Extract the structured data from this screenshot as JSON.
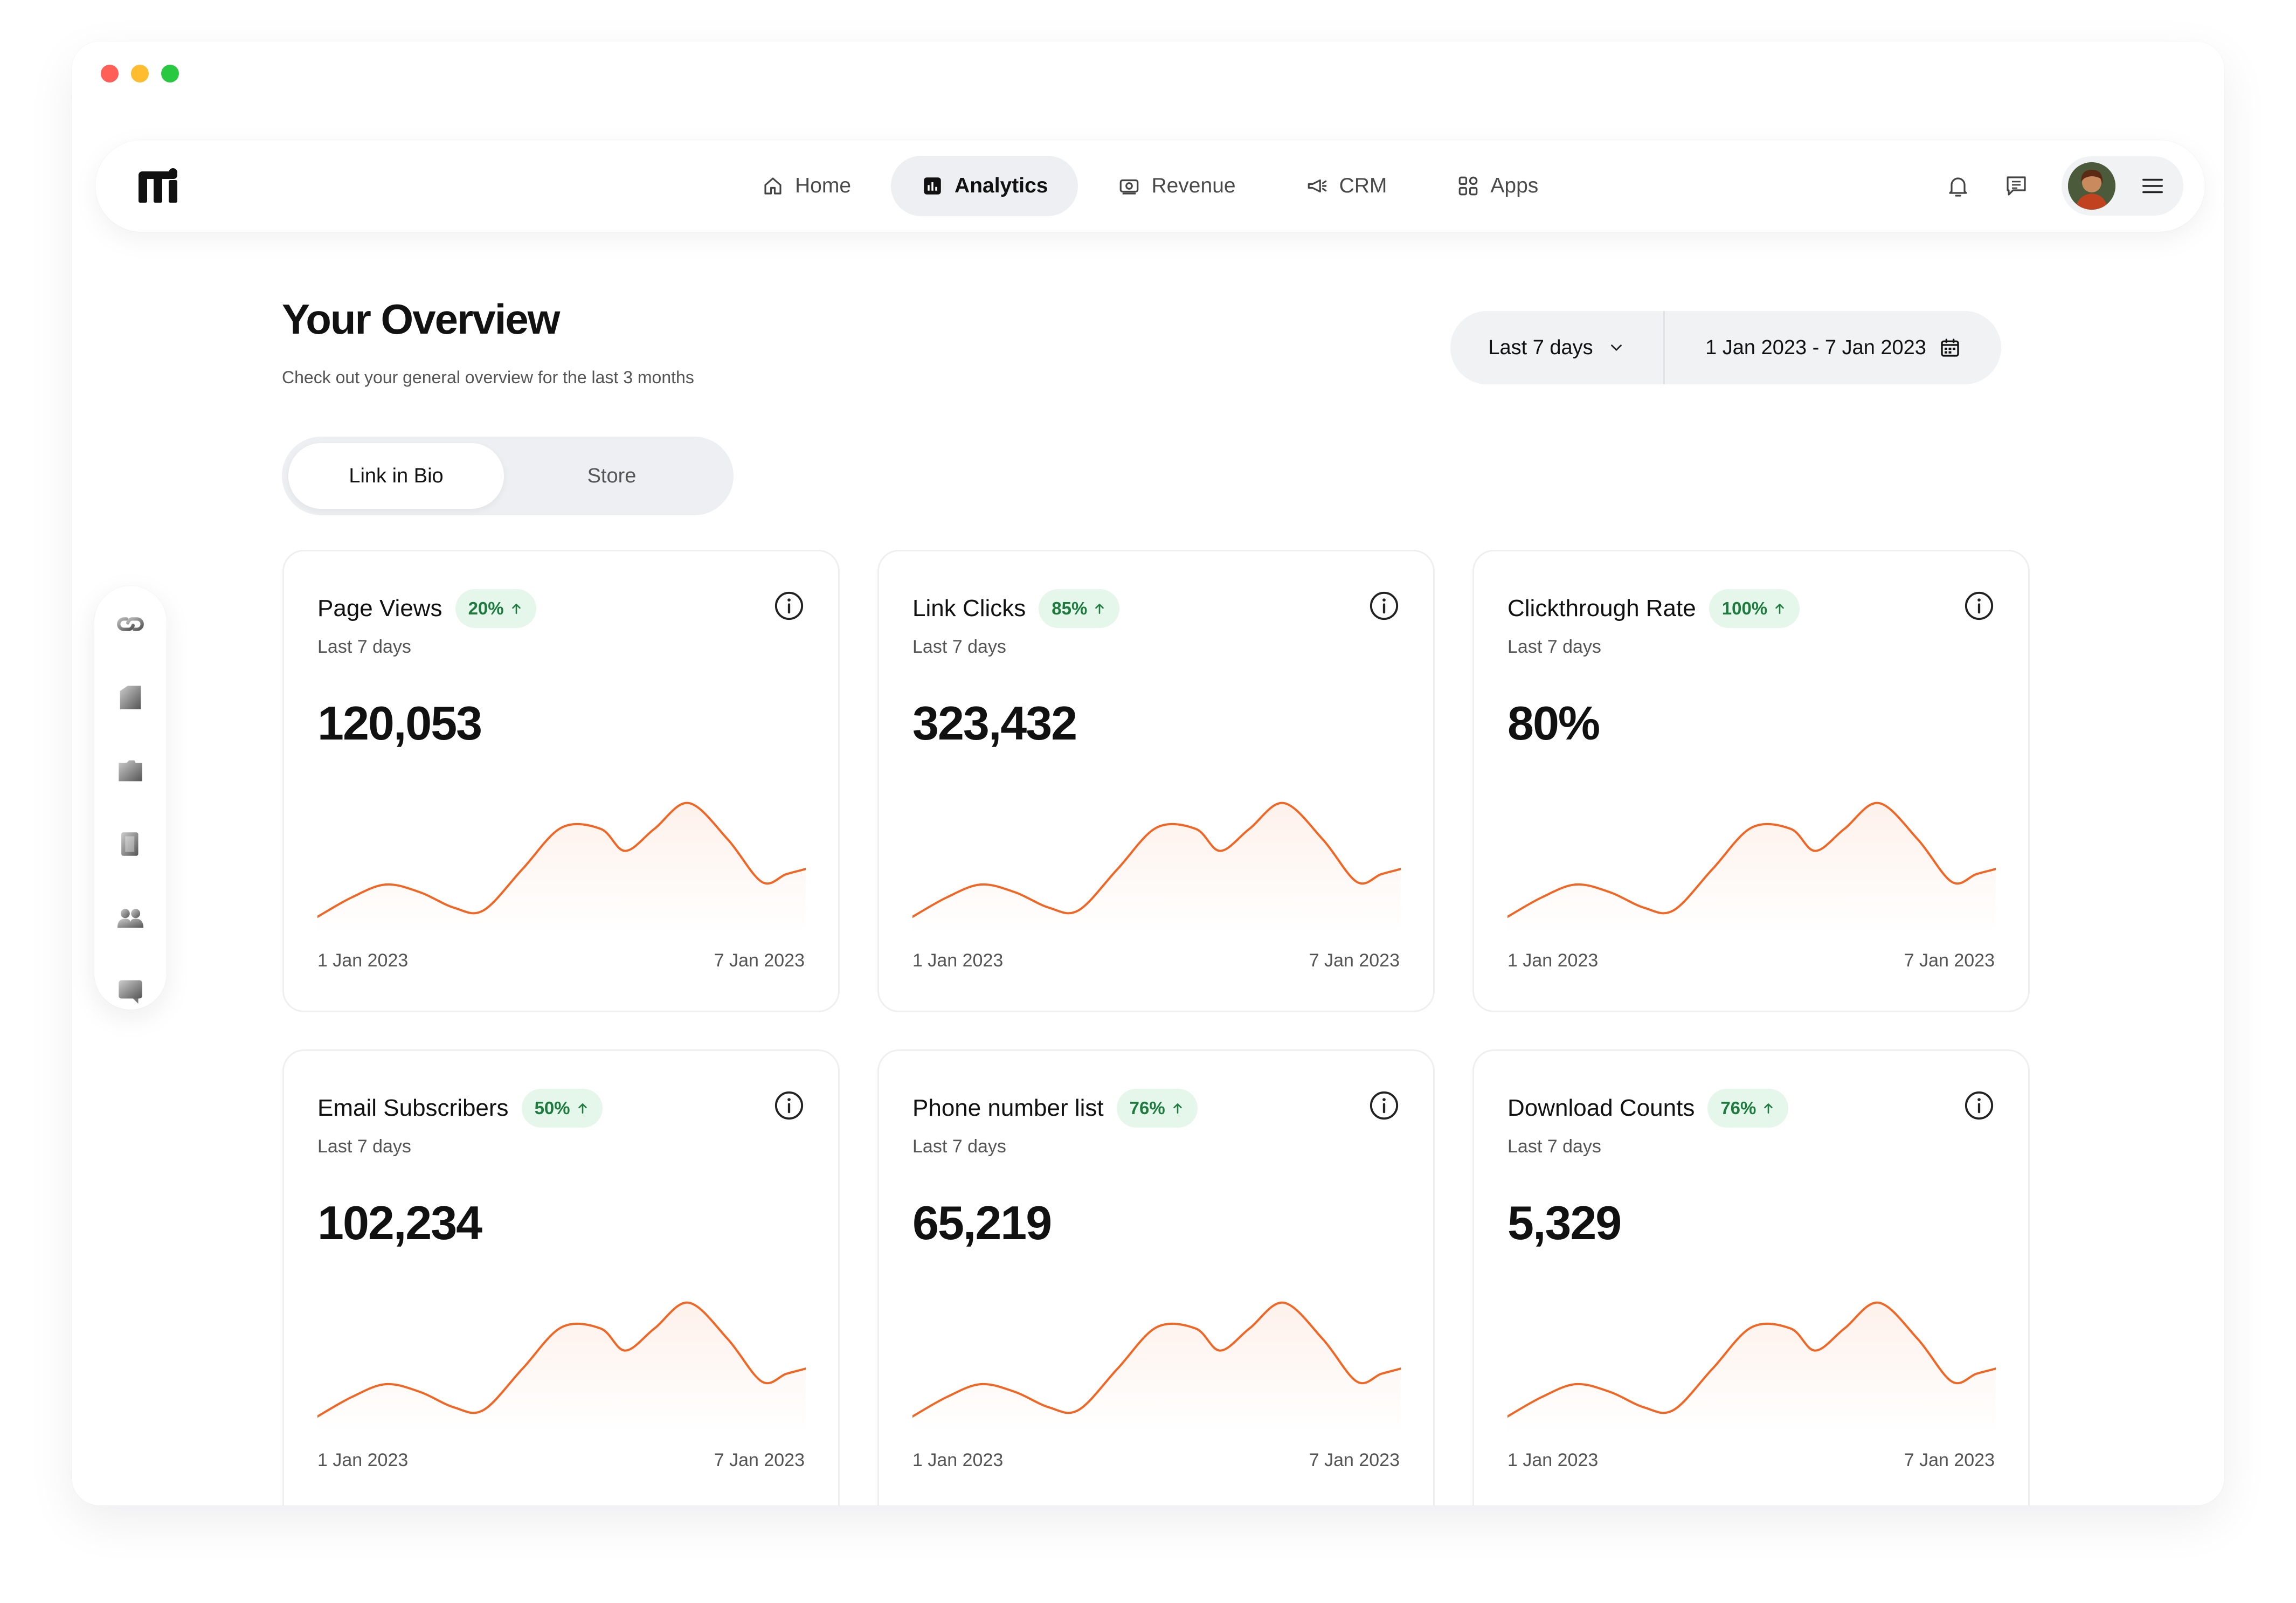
{
  "nav": {
    "items": [
      {
        "label": "Home",
        "icon": "home-icon",
        "active": false
      },
      {
        "label": "Analytics",
        "icon": "analytics-icon",
        "active": true
      },
      {
        "label": "Revenue",
        "icon": "revenue-icon",
        "active": false
      },
      {
        "label": "CRM",
        "icon": "megaphone-icon",
        "active": false
      },
      {
        "label": "Apps",
        "icon": "apps-icon",
        "active": false
      }
    ]
  },
  "header": {
    "title": "Your Overview",
    "subtitle": "Check out your general overview for the last 3 months"
  },
  "date_filter": {
    "range_label": "Last 7 days",
    "date_range": "1 Jan 2023 - 7 Jan 2023"
  },
  "toggle": {
    "options": [
      "Link in Bio",
      "Store"
    ],
    "selected": "Link in Bio"
  },
  "colors": {
    "accent": "#f26522",
    "badge_bg": "#e4f7ea",
    "badge_text": "#1e7a3e",
    "active_nav_bg": "#eeeff2"
  },
  "cards": [
    {
      "title": "Page Views",
      "badge": "20%",
      "period": "Last 7 days",
      "value": "120,053",
      "x_start": "1 Jan 2023",
      "x_end": "7 Jan 2023"
    },
    {
      "title": "Link Clicks",
      "badge": "85%",
      "period": "Last 7 days",
      "value": "323,432",
      "x_start": "1 Jan 2023",
      "x_end": "7 Jan 2023"
    },
    {
      "title": "Clickthrough Rate",
      "badge": "100%",
      "period": "Last 7 days",
      "value": "80%",
      "x_start": "1 Jan 2023",
      "x_end": "7 Jan 2023"
    },
    {
      "title": "Email Subscribers",
      "badge": "50%",
      "period": "Last 7 days",
      "value": "102,234",
      "x_start": "1 Jan 2023",
      "x_end": "7 Jan 2023"
    },
    {
      "title": "Phone number list",
      "badge": "76%",
      "period": "Last 7 days",
      "value": "65,219",
      "x_start": "1 Jan 2023",
      "x_end": "7 Jan 2023"
    },
    {
      "title": "Download Counts",
      "badge": "76%",
      "period": "Last 7 days",
      "value": "5,329",
      "x_start": "1 Jan 2023",
      "x_end": "7 Jan 2023"
    }
  ],
  "chart_data": {
    "type": "area",
    "x": [
      0,
      0.07,
      0.14,
      0.21,
      0.28,
      0.34,
      0.42,
      0.5,
      0.58,
      0.63,
      0.69,
      0.76,
      0.84,
      0.91,
      0.96,
      1.0
    ],
    "values": [
      0.05,
      0.2,
      0.3,
      0.24,
      0.12,
      0.1,
      0.42,
      0.74,
      0.73,
      0.56,
      0.73,
      0.93,
      0.65,
      0.32,
      0.38,
      0.42
    ],
    "ylim": [
      0,
      1
    ]
  }
}
